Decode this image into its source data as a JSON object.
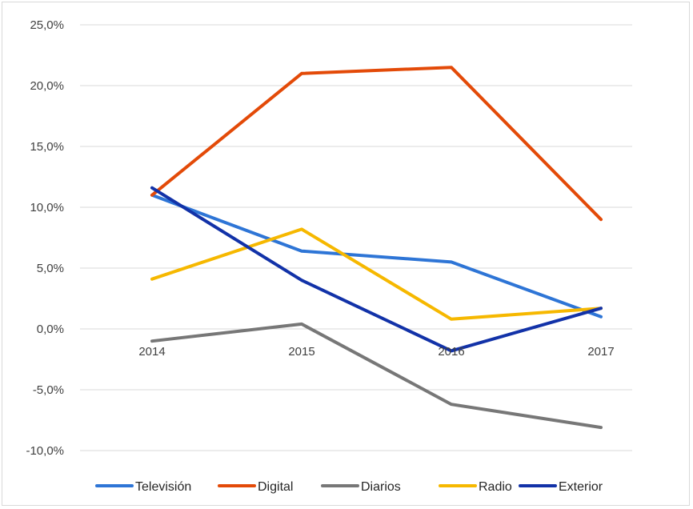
{
  "chart_data": {
    "type": "line",
    "title": "",
    "xlabel": "",
    "ylabel": "",
    "categories": [
      "2014",
      "2015",
      "2016",
      "2017"
    ],
    "ylim": [
      -10,
      25
    ],
    "yticks": [
      25,
      20,
      15,
      10,
      5,
      0,
      -5,
      -10
    ],
    "ytick_labels": [
      "25,0%",
      "20,0%",
      "15,0%",
      "10,0%",
      "5,0%",
      "0,0%",
      "-5,0%",
      "-10,0%"
    ],
    "grid": true,
    "legend_position": "bottom",
    "series": [
      {
        "name": "Televisión",
        "color": "#2E75D6",
        "values": [
          11.0,
          6.4,
          5.5,
          1.0
        ]
      },
      {
        "name": "Digital",
        "color": "#E34A08",
        "values": [
          11.0,
          21.0,
          21.5,
          9.0
        ]
      },
      {
        "name": "Diarios",
        "color": "#777777",
        "values": [
          -1.0,
          0.4,
          -6.2,
          -8.1
        ]
      },
      {
        "name": "Radio",
        "color": "#F6B800",
        "values": [
          4.1,
          8.2,
          0.8,
          1.7
        ]
      },
      {
        "name": "Exterior",
        "color": "#1232A8",
        "values": [
          11.6,
          4.0,
          -1.8,
          1.7
        ]
      }
    ]
  }
}
